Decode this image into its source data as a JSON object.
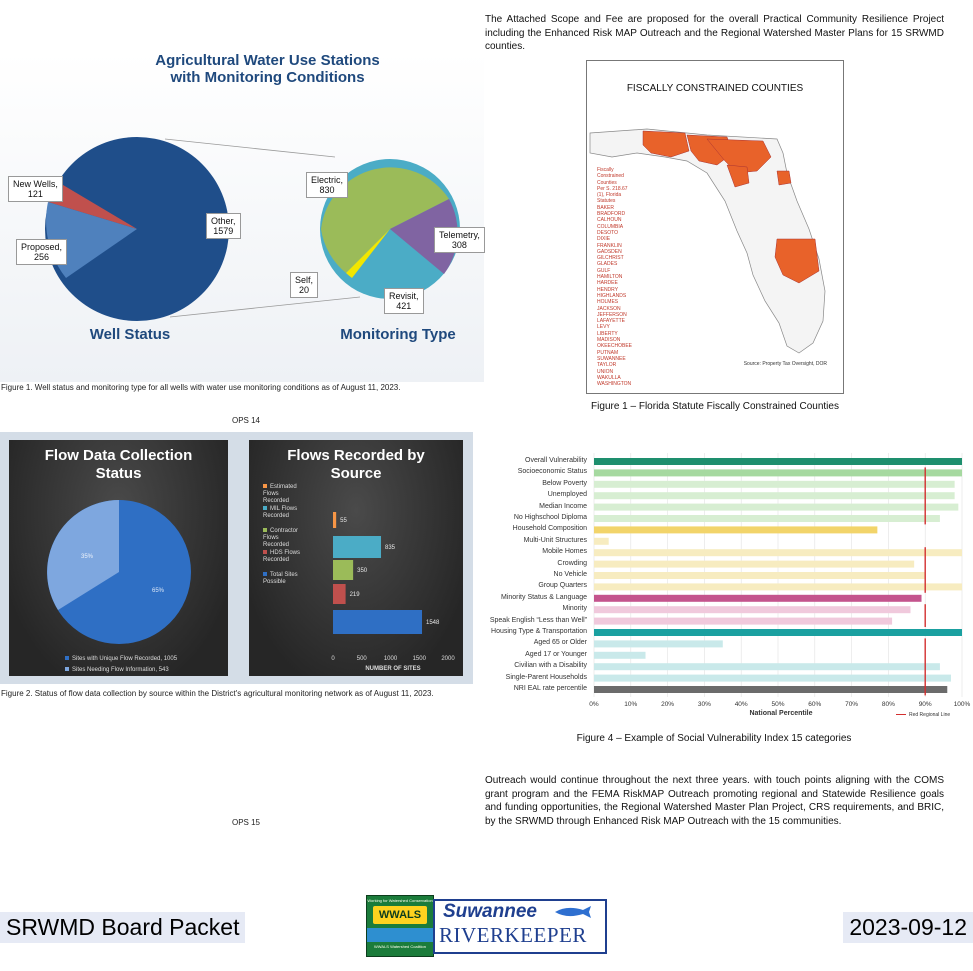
{
  "fig_ag": {
    "title": "Agricultural Water Use Stations with Monitoring Conditions",
    "title_line1": "Agricultural Water Use Stations",
    "title_line2": "with Monitoring Conditions",
    "left_label": "Well Status",
    "right_label": "Monitoring Type",
    "caption": "Figure 1.  Well status and monitoring type for all wells with water use monitoring conditions as of August 11, 2023.",
    "well_status": [
      {
        "label": "New Wells,",
        "value": "121",
        "color": "#c0504d"
      },
      {
        "label": "Proposed,",
        "value": "256",
        "color": "#4f81bd"
      },
      {
        "label": "Other,",
        "value": "1579",
        "color": "#1f4e8a"
      }
    ],
    "monitoring_type": [
      {
        "label": "Electric,",
        "value": "830",
        "color": "#9bbb59"
      },
      {
        "label": "Telemetry,",
        "value": "308",
        "color": "#8064a2"
      },
      {
        "label": "Revisit,",
        "value": "421",
        "color": "#4bacc6"
      },
      {
        "label": "Self,",
        "value": "20",
        "color": "#f2e600"
      }
    ]
  },
  "ops14": "OPS 14",
  "ops15": "OPS 15",
  "fig_flow": {
    "caption": "Figure 2. Status of flow data collection by source within the District's agricultural monitoring network as of August 11, 2023.",
    "pie": {
      "title_line1": "Flow Data Collection",
      "title_line2": "Status",
      "slice_a_pct": "65%",
      "slice_b_pct": "35%",
      "legend_a": "Sites with Unique Flow Recorded, 1005",
      "legend_b": "Sites Needing Flow Information, 543",
      "color_a": "#2f6fc4",
      "color_b": "#7ea7df"
    },
    "bars": {
      "title_line1": "Flows Recorded by",
      "title_line2": "Source",
      "xlabel": "NUMBER OF SITES",
      "ticks": [
        "0",
        "500",
        "1000",
        "1500",
        "2000"
      ],
      "items": [
        {
          "legend": "Estimated Flows Recorded",
          "value": "55",
          "color": "#f79646"
        },
        {
          "legend": "MIL Flows Recorded",
          "value": "835",
          "color": "#4bacc6"
        },
        {
          "legend": "Contractor Flows Recorded",
          "value": "350",
          "color": "#9bbb59"
        },
        {
          "legend": "HDS Flows Recorded",
          "value": "219",
          "color": "#c0504d"
        },
        {
          "legend": "Total Sites Possible",
          "value": "1548",
          "color": "#2f6fc4"
        }
      ]
    }
  },
  "intro_para": "The Attached Scope and Fee are proposed for the overall Practical Community Resilience Project including the Enhanced Risk MAP Outreach and the Regional Watershed Master Plans for 15 SRWMD counties.",
  "map": {
    "title": "FISCALLY CONSTRAINED COUNTIES",
    "caption": "Figure 1 – Florida Statute Fiscally Constrained Counties",
    "source": "Source: Property Tax Oversight, DOR",
    "list_header": [
      "Fiscally",
      "Constrained",
      "Counties",
      "Per S. 218.67",
      "(1), Florida",
      "Statutes"
    ],
    "counties": [
      "BAKER",
      "BRADFORD",
      "CALHOUN",
      "COLUMBIA",
      "DESOTO",
      "DIXIE",
      "FRANKLIN",
      "GADSDEN",
      "GILCHRIST",
      "GLADES",
      "GULF",
      "HAMILTON",
      "HARDEE",
      "HENDRY",
      "HIGHLANDS",
      "HOLMES",
      "JACKSON",
      "JEFFERSON",
      "LAFAYETTE",
      "LEVY",
      "LIBERTY",
      "MADISON",
      "OKEECHOBEE",
      "PUTNAM",
      "SUWANNEE",
      "TAYLOR",
      "UNION",
      "WAKULLA",
      "WASHINGTON"
    ]
  },
  "svi": {
    "caption": "Figure 4 – Example of Social Vulnerability Index 15 categories",
    "xlabel": "National Percentile",
    "legend": "Red Regional Line",
    "ticks": [
      "0%",
      "10%",
      "20%",
      "30%",
      "40%",
      "50%",
      "60%",
      "70%",
      "80%",
      "90%",
      "100%"
    ],
    "rows": [
      {
        "label": "Overall Vulnerability",
        "value": 100,
        "color": "#1e8f6e"
      },
      {
        "label": "Socioeconomic Status",
        "value": 100,
        "color": "#a6d9a0"
      },
      {
        "label": "Below Poverty",
        "value": 98,
        "color": "#d7eed2"
      },
      {
        "label": "Unemployed",
        "value": 98,
        "color": "#d7eed2"
      },
      {
        "label": "Median Income",
        "value": 99,
        "color": "#d7eed2"
      },
      {
        "label": "No Highschool Diploma",
        "value": 94,
        "color": "#d7eed2"
      },
      {
        "label": "Household Composition",
        "value": 77,
        "color": "#f2d46a"
      },
      {
        "label": "Multi-Unit Structures",
        "value": 4,
        "color": "#f7ecc0"
      },
      {
        "label": "Mobile Homes",
        "value": 100,
        "color": "#f7ecc0"
      },
      {
        "label": "Crowding",
        "value": 87,
        "color": "#f7ecc0"
      },
      {
        "label": "No Vehicle",
        "value": 90,
        "color": "#f7ecc0"
      },
      {
        "label": "Group Quarters",
        "value": 100,
        "color": "#f7ecc0"
      },
      {
        "label": "Minority Status & Language",
        "value": 89,
        "color": "#c4548d"
      },
      {
        "label": "Minority",
        "value": 86,
        "color": "#f0c9dc"
      },
      {
        "label": "Speak English “Less than Well”",
        "value": 81,
        "color": "#f0c9dc"
      },
      {
        "label": "Housing Type & Transportation",
        "value": 100,
        "color": "#1aa0a0"
      },
      {
        "label": "Aged 65 or Older",
        "value": 35,
        "color": "#c9e9ea"
      },
      {
        "label": "Aged 17 or Younger",
        "value": 14,
        "color": "#c9e9ea"
      },
      {
        "label": "Civilian with a Disability",
        "value": 94,
        "color": "#c9e9ea"
      },
      {
        "label": "Single-Parent Households",
        "value": 97,
        "color": "#c9e9ea"
      },
      {
        "label": "NRI EAL rate percentile",
        "value": 96,
        "color": "#6b6b6b"
      }
    ]
  },
  "outro_para": "Outreach would continue throughout the next three years. with touch points aligning with the COMS grant program and the FEMA RiskMAP Outreach promoting regional and Statewide Resilience goals and funding opportunities, the Regional Watershed Master Plan Project, CRS requirements, and BRIC, by the SRWMD through Enhanced Risk MAP Outreach with the 15 communities.",
  "footer": {
    "left": "SRWMD Board Packet",
    "right": "2023-09-12",
    "logo1_top": "Working for Watershed Conservation",
    "logo1_main": "WWALS",
    "logo1_bottom": "WWALS Watershed Coalition",
    "logo2_line1": "Suwannee",
    "logo2_line2": "RIVERKEEPER"
  }
}
